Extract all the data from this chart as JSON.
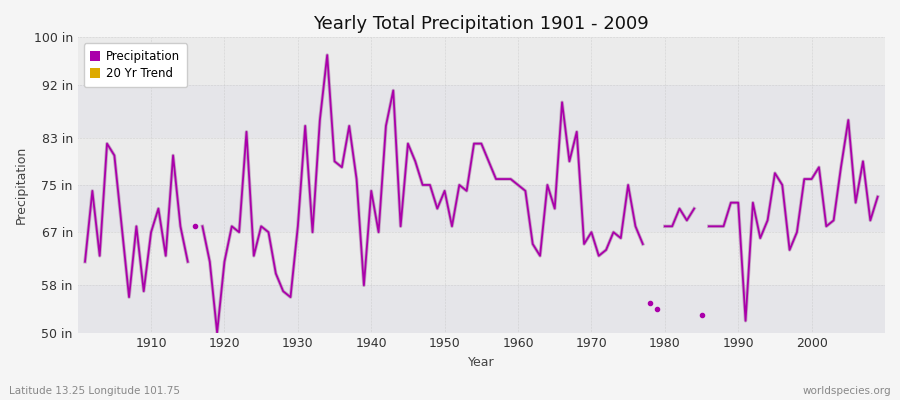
{
  "title": "Yearly Total Precipitation 1901 - 2009",
  "xlabel": "Year",
  "ylabel": "Precipitation",
  "lat_lon_label": "Latitude 13.25 Longitude 101.75",
  "watermark": "worldspecies.org",
  "ylim": [
    50,
    100
  ],
  "yticks": [
    50,
    58,
    67,
    75,
    83,
    92,
    100
  ],
  "ytick_labels": [
    "50 in",
    "58 in",
    "67 in",
    "75 in",
    "83 in",
    "92 in",
    "100 in"
  ],
  "xlim": [
    1900,
    2010
  ],
  "line_color": "#aa00aa",
  "trend_color": "#ddaa00",
  "trend_line_color": "#c0a0c0",
  "bg_color": "#ebebeb",
  "bg_outer": "#f5f5f5",
  "legend_entries": [
    "Precipitation",
    "20 Yr Trend"
  ],
  "all_years": [
    1901,
    1902,
    1903,
    1904,
    1905,
    1906,
    1907,
    1908,
    1909,
    1910,
    1911,
    1912,
    1913,
    1914,
    1915,
    1916,
    1917,
    1918,
    1919,
    1920,
    1921,
    1922,
    1923,
    1924,
    1925,
    1926,
    1927,
    1928,
    1929,
    1930,
    1931,
    1932,
    1933,
    1934,
    1935,
    1936,
    1937,
    1938,
    1939,
    1940,
    1941,
    1942,
    1943,
    1944,
    1945,
    1946,
    1947,
    1948,
    1949,
    1950,
    1951,
    1952,
    1953,
    1954,
    1955,
    1956,
    1957,
    1958,
    1959,
    1960,
    1961,
    1962,
    1963,
    1964,
    1965,
    1966,
    1967,
    1968,
    1969,
    1970,
    1971,
    1972,
    1973,
    1974,
    1975,
    1976,
    1977,
    1978,
    1979,
    1980,
    1981,
    1982,
    1983,
    1984,
    1985,
    1986,
    1987,
    1988,
    1989,
    1990,
    1991,
    1992,
    1993,
    1994,
    1995,
    1996,
    1997,
    1998,
    1999,
    2000,
    2001,
    2002,
    2003,
    2004,
    2005,
    2006,
    2007,
    2008,
    2009
  ],
  "all_precip": [
    62,
    74,
    63,
    82,
    80,
    68,
    56,
    68,
    57,
    67,
    71,
    63,
    80,
    68,
    62,
    68,
    68,
    62,
    50,
    62,
    68,
    67,
    84,
    63,
    68,
    67,
    60,
    57,
    56,
    68,
    85,
    67,
    86,
    97,
    79,
    78,
    85,
    76,
    58,
    74,
    67,
    85,
    91,
    68,
    82,
    79,
    75,
    75,
    71,
    74,
    68,
    75,
    74,
    82,
    82,
    79,
    76,
    76,
    76,
    75,
    74,
    65,
    63,
    75,
    71,
    89,
    79,
    84,
    65,
    67,
    63,
    64,
    67,
    66,
    75,
    68,
    65,
    55,
    54,
    68,
    68,
    71,
    69,
    71,
    53,
    68,
    68,
    68,
    72,
    72,
    52,
    72,
    66,
    69,
    77,
    75,
    64,
    67,
    76,
    76,
    78,
    68,
    69,
    78,
    86,
    72,
    79,
    69,
    73
  ],
  "isolated_years": [
    1916,
    1978,
    1979,
    1985
  ],
  "connected_breaks": []
}
